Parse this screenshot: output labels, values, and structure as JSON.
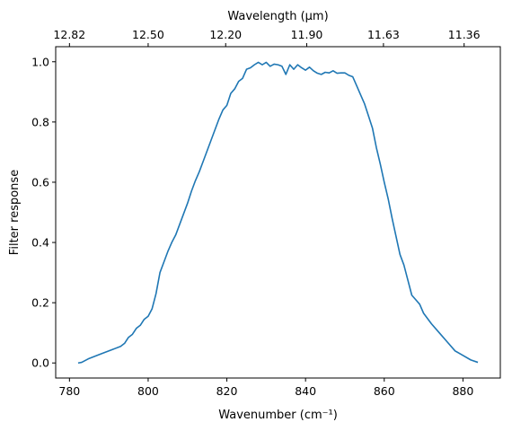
{
  "chart_data": {
    "type": "line",
    "xlabel": "Wavenumber (cm⁻¹)",
    "ylabel": "Filter response",
    "top_xlabel": "Wavelength (μm)",
    "xlim": [
      776.5,
      889.5
    ],
    "ylim": [
      -0.05,
      1.05
    ],
    "x_ticks": [
      780,
      800,
      820,
      840,
      860,
      880
    ],
    "y_ticks": [
      0.0,
      0.2,
      0.4,
      0.6,
      0.8,
      1.0
    ],
    "y_tick_labels": [
      "0.0",
      "0.2",
      "0.4",
      "0.6",
      "0.8",
      "1.0"
    ],
    "top_ticks": [
      {
        "label": "12.82",
        "wavenumber": 780.0
      },
      {
        "label": "12.50",
        "wavenumber": 800.0
      },
      {
        "label": "12.20",
        "wavenumber": 819.7
      },
      {
        "label": "11.90",
        "wavenumber": 840.3
      },
      {
        "label": "11.63",
        "wavenumber": 859.8
      },
      {
        "label": "11.36",
        "wavenumber": 880.3
      }
    ],
    "grid": false,
    "series": [
      {
        "color": "#1f77b4",
        "x": [
          782.2,
          783.1,
          785,
          788,
          791,
          793,
          794,
          795,
          796,
          797,
          798,
          799,
          800,
          801,
          802,
          803,
          804,
          805,
          806,
          807,
          808,
          809,
          810,
          811,
          812,
          813,
          814,
          815,
          816,
          817,
          818,
          819,
          820,
          821,
          822,
          823,
          824,
          825,
          826,
          827,
          828,
          829,
          830,
          831,
          832,
          833,
          834,
          835,
          836,
          837,
          838,
          839,
          840,
          841,
          842,
          843,
          844,
          845,
          846,
          847,
          848,
          849,
          850,
          851,
          852,
          853,
          854,
          855,
          856,
          857,
          858,
          859,
          860,
          861,
          862,
          863,
          864,
          865,
          866,
          867,
          868,
          869,
          870,
          872,
          874,
          876,
          878,
          880,
          882,
          883.8
        ],
        "y": [
          0.0,
          0.002,
          0.015,
          0.03,
          0.045,
          0.055,
          0.065,
          0.085,
          0.095,
          0.115,
          0.125,
          0.145,
          0.155,
          0.18,
          0.23,
          0.3,
          0.335,
          0.37,
          0.4,
          0.425,
          0.46,
          0.495,
          0.53,
          0.57,
          0.605,
          0.635,
          0.67,
          0.705,
          0.74,
          0.775,
          0.81,
          0.84,
          0.855,
          0.895,
          0.91,
          0.935,
          0.945,
          0.975,
          0.98,
          0.99,
          0.998,
          0.99,
          0.998,
          0.985,
          0.992,
          0.99,
          0.985,
          0.958,
          0.99,
          0.975,
          0.99,
          0.98,
          0.972,
          0.982,
          0.97,
          0.962,
          0.958,
          0.965,
          0.963,
          0.97,
          0.962,
          0.963,
          0.963,
          0.955,
          0.95,
          0.92,
          0.89,
          0.86,
          0.82,
          0.78,
          0.715,
          0.66,
          0.6,
          0.545,
          0.48,
          0.42,
          0.36,
          0.325,
          0.275,
          0.225,
          0.21,
          0.195,
          0.165,
          0.13,
          0.1,
          0.07,
          0.04,
          0.025,
          0.01,
          0.002
        ]
      }
    ]
  }
}
